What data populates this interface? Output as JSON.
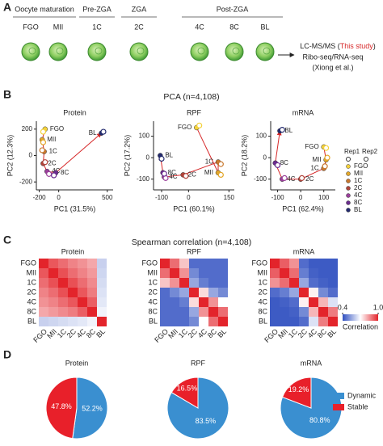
{
  "panel_a": {
    "label": "A",
    "groups": [
      {
        "name": "Oocyte maturation",
        "stages": [
          "FGO",
          "MII"
        ]
      },
      {
        "name": "Pre-ZGA",
        "stages": [
          "1C"
        ]
      },
      {
        "name": "ZGA",
        "stages": [
          "2C"
        ]
      },
      {
        "name": "Post-ZGA",
        "stages": [
          "4C",
          "8C",
          "BL"
        ]
      }
    ],
    "methods": {
      "line1": "LC-MS/MS (",
      "highlight": "This study",
      "close": ")",
      "line2": "Ribo-seq/RNA-seq",
      "line3": "(Xiong et al.)"
    }
  },
  "panel_b": {
    "label": "B",
    "title": "PCA (n=4,108)",
    "replicates": [
      "Rep1",
      "Rep2"
    ]
  },
  "panel_c": {
    "label": "C",
    "title": "Spearman correlation (n=4,108)"
  },
  "panel_d": {
    "label": "D"
  },
  "chart_data": [
    {
      "type": "scatter",
      "title": "Protein",
      "x_label": "PC1 (31.5%)",
      "y_label": "PC2 (12.3%)",
      "xlim": [
        -230,
        560
      ],
      "xticks": [
        -200,
        0,
        500
      ],
      "ylim": [
        -260,
        260
      ],
      "yticks": [
        -200,
        0,
        200
      ],
      "series": [
        {
          "name": "FGO",
          "color": "#f4d23c",
          "x": [
            -140,
            -160
          ],
          "y": [
            200,
            180
          ]
        },
        {
          "name": "MII",
          "color": "#e3a72a",
          "x": [
            -170,
            -160
          ],
          "y": [
            120,
            100
          ]
        },
        {
          "name": "1C",
          "color": "#c9782e",
          "x": [
            -150,
            -170
          ],
          "y": [
            30,
            40
          ]
        },
        {
          "name": "2C",
          "color": "#b0443a",
          "x": [
            -160,
            -140
          ],
          "y": [
            -60,
            -50
          ]
        },
        {
          "name": "4C",
          "color": "#9a3f9a",
          "x": [
            -120,
            -100
          ],
          "y": [
            -120,
            -140
          ]
        },
        {
          "name": "8C",
          "color": "#6a2c8e",
          "x": [
            -30,
            -50
          ],
          "y": [
            -130,
            -150
          ]
        },
        {
          "name": "BL",
          "color": "#232a6e",
          "x": [
            440,
            460
          ],
          "y": [
            170,
            180
          ]
        }
      ]
    },
    {
      "type": "scatter",
      "title": "RPF",
      "x_label": "PC1 (60.1%)",
      "y_label": "PC2 (17.2%)",
      "xlim": [
        -130,
        170
      ],
      "xticks": [
        -100,
        0,
        150
      ],
      "ylim": [
        -150,
        170
      ],
      "yticks": [
        -100,
        0,
        100
      ],
      "series": [
        {
          "name": "FGO",
          "color": "#f4d23c",
          "x": [
            30,
            40
          ],
          "y": [
            140,
            150
          ]
        },
        {
          "name": "MII",
          "color": "#e3a72a",
          "x": [
            110,
            120
          ],
          "y": [
            -70,
            -80
          ]
        },
        {
          "name": "1C",
          "color": "#c9782e",
          "x": [
            110,
            120
          ],
          "y": [
            -20,
            -30
          ]
        },
        {
          "name": "2C",
          "color": "#b0443a",
          "x": [
            -20,
            -10
          ],
          "y": [
            -80,
            -85
          ]
        },
        {
          "name": "4C",
          "color": "#9a3f9a",
          "x": [
            -90,
            -85
          ],
          "y": [
            -90,
            -95
          ]
        },
        {
          "name": "8C",
          "color": "#6a2c8e",
          "x": [
            -95,
            -90
          ],
          "y": [
            -70,
            -75
          ]
        },
        {
          "name": "BL",
          "color": "#232a6e",
          "x": [
            -105,
            -100
          ],
          "y": [
            10,
            -5
          ]
        }
      ]
    },
    {
      "type": "scatter",
      "title": "mRNA",
      "x_label": "PC1 (62.4%)",
      "y_label": "PC2 (18.2%)",
      "xlim": [
        -130,
        150
      ],
      "xticks": [
        -100,
        0,
        100
      ],
      "ylim": [
        -150,
        170
      ],
      "yticks": [
        -100,
        0,
        100
      ],
      "series": [
        {
          "name": "FGO",
          "color": "#f4d23c",
          "x": [
            100,
            110
          ],
          "y": [
            50,
            45
          ]
        },
        {
          "name": "MII",
          "color": "#e3a72a",
          "x": [
            110,
            115
          ],
          "y": [
            -10,
            0
          ]
        },
        {
          "name": "1C",
          "color": "#c9782e",
          "x": [
            100,
            105
          ],
          "y": [
            -50,
            -40
          ]
        },
        {
          "name": "2C",
          "color": "#b0443a",
          "x": [
            0,
            5
          ],
          "y": [
            -100,
            -95
          ]
        },
        {
          "name": "4C",
          "color": "#9a3f9a",
          "x": [
            -80,
            -70
          ],
          "y": [
            -100,
            -95
          ]
        },
        {
          "name": "8C",
          "color": "#6a2c8e",
          "x": [
            -110,
            -100
          ],
          "y": [
            -25,
            -35
          ]
        },
        {
          "name": "BL",
          "color": "#232a6e",
          "x": [
            -90,
            -80
          ],
          "y": [
            125,
            130
          ]
        }
      ]
    },
    {
      "type": "heatmap",
      "title": "Protein",
      "categories": [
        "FGO",
        "MII",
        "1C",
        "2C",
        "4C",
        "8C",
        "BL"
      ],
      "zlim": [
        0.4,
        1.0
      ],
      "colors": [
        "#2f4fc0",
        "#ffffff",
        "#e3242b"
      ],
      "z": [
        [
          1,
          0.93,
          0.9,
          0.87,
          0.85,
          0.82,
          0.62
        ],
        [
          0.93,
          1,
          0.94,
          0.9,
          0.87,
          0.84,
          0.63
        ],
        [
          0.9,
          0.94,
          1,
          0.94,
          0.9,
          0.86,
          0.64
        ],
        [
          0.87,
          0.9,
          0.94,
          1,
          0.93,
          0.88,
          0.65
        ],
        [
          0.85,
          0.87,
          0.9,
          0.93,
          1,
          0.92,
          0.66
        ],
        [
          0.82,
          0.84,
          0.86,
          0.88,
          0.92,
          1,
          0.68
        ],
        [
          0.62,
          0.63,
          0.64,
          0.65,
          0.66,
          0.68,
          1
        ]
      ]
    },
    {
      "type": "heatmap",
      "title": "RPF",
      "categories": [
        "FGO",
        "MII",
        "1C",
        "2C",
        "4C",
        "8C",
        "BL"
      ],
      "zlim": [
        0.4,
        1.0
      ],
      "colors": [
        "#2f4fc0",
        "#ffffff",
        "#e3242b"
      ],
      "z": [
        [
          1,
          0.9,
          0.78,
          0.45,
          0.45,
          0.45,
          0.45
        ],
        [
          0.9,
          1,
          0.85,
          0.5,
          0.45,
          0.45,
          0.45
        ],
        [
          0.78,
          0.85,
          1,
          0.55,
          0.48,
          0.45,
          0.45
        ],
        [
          0.45,
          0.5,
          0.55,
          1,
          0.75,
          0.55,
          0.5
        ],
        [
          0.45,
          0.45,
          0.48,
          0.75,
          1,
          0.85,
          0.7
        ],
        [
          0.45,
          0.45,
          0.45,
          0.55,
          0.85,
          1,
          0.9
        ],
        [
          0.45,
          0.45,
          0.45,
          0.5,
          0.7,
          0.9,
          1
        ]
      ]
    },
    {
      "type": "heatmap",
      "title": "mRNA",
      "categories": [
        "FGO",
        "MII",
        "1C",
        "2C",
        "4C",
        "8C",
        "BL"
      ],
      "zlim": [
        0.4,
        1.0
      ],
      "colors": [
        "#2f4fc0",
        "#ffffff",
        "#e3242b"
      ],
      "z": [
        [
          1,
          0.92,
          0.85,
          0.45,
          0.42,
          0.42,
          0.42
        ],
        [
          0.92,
          1,
          0.9,
          0.48,
          0.43,
          0.42,
          0.42
        ],
        [
          0.85,
          0.9,
          1,
          0.55,
          0.45,
          0.43,
          0.42
        ],
        [
          0.45,
          0.48,
          0.55,
          1,
          0.72,
          0.5,
          0.45
        ],
        [
          0.42,
          0.43,
          0.45,
          0.72,
          1,
          0.8,
          0.65
        ],
        [
          0.42,
          0.42,
          0.43,
          0.5,
          0.8,
          1,
          0.88
        ],
        [
          0.42,
          0.42,
          0.42,
          0.45,
          0.65,
          0.88,
          1
        ]
      ],
      "colorbar": {
        "label": "Correlation",
        "ticks": [
          0.4,
          {
            "value": 1.0,
            "label": "1.0"
          }
        ]
      }
    },
    {
      "type": "pie",
      "title": "Protein",
      "labels": [
        "Dynamic",
        "Stable"
      ],
      "colors": [
        "#3a8fd0",
        "#e8202a"
      ],
      "values": [
        52.2,
        47.8
      ],
      "value_labels": [
        "52.2%",
        "47.8%"
      ]
    },
    {
      "type": "pie",
      "title": "RPF",
      "labels": [
        "Dynamic",
        "Stable"
      ],
      "colors": [
        "#3a8fd0",
        "#e8202a"
      ],
      "values": [
        83.5,
        16.5
      ],
      "value_labels": [
        "83.5%",
        "16.5%"
      ]
    },
    {
      "type": "pie",
      "title": "mRNA",
      "labels": [
        "Dynamic",
        "Stable"
      ],
      "colors": [
        "#3a8fd0",
        "#e8202a"
      ],
      "values": [
        80.8,
        19.2
      ],
      "value_labels": [
        "80.8%",
        "19.2%"
      ]
    }
  ]
}
